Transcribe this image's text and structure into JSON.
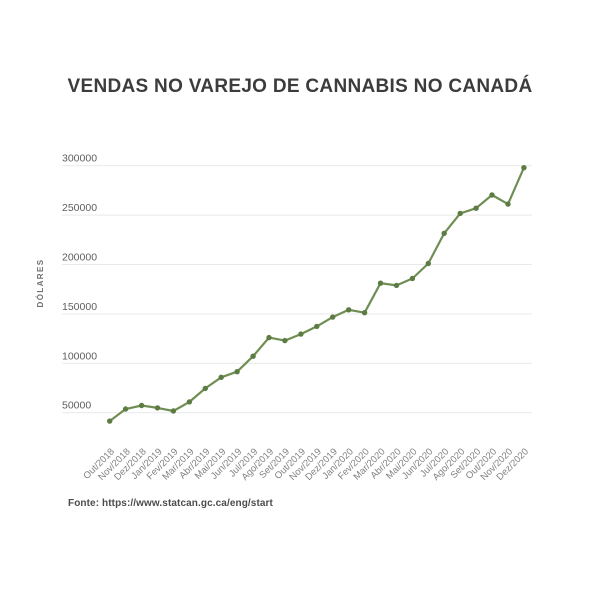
{
  "chart": {
    "title": "VENDAS NO VAREJO DE CANNABIS NO CANADÁ",
    "source_note": "Fonte: https://www.statcan.gc.ca/eng/start"
  },
  "chart_data": {
    "type": "line",
    "title": "VENDAS NO VAREJO DE CANNABIS NO CANADÁ",
    "xlabel": "",
    "ylabel": "DÓLARES",
    "categories": [
      "Out/2018",
      "Nov/2018",
      "Dez/2018",
      "Jan/2019",
      "Fev/2019",
      "Mar/2019",
      "Abr/2019",
      "Mai/2019",
      "Jun/2019",
      "Jul/2019",
      "Ago/2019",
      "Set/2019",
      "Out/2019",
      "Nov/2019",
      "Dez/2019",
      "Jan/2020",
      "Fev/2020",
      "Mar/2020",
      "Abr/2020",
      "Mai/2020",
      "Jun/2020",
      "Jul/2020",
      "Ago/2020",
      "Set/2020",
      "Out/2020",
      "Nov/2020",
      "Dez/2020"
    ],
    "values": [
      41500,
      53700,
      57300,
      54900,
      51700,
      60900,
      74600,
      85800,
      91500,
      107200,
      126000,
      123000,
      129600,
      137300,
      146800,
      154100,
      151200,
      181100,
      178800,
      185800,
      201000,
      231600,
      251700,
      257000,
      270300,
      261100,
      298000
    ],
    "yticks": [
      50000,
      100000,
      150000,
      200000,
      250000,
      300000
    ],
    "ylim": [
      30000,
      310000
    ],
    "grid": "horizontal-only",
    "legend": "none",
    "marker": "circle",
    "colors": {
      "line": "#6f8e53",
      "point": "#5d7c44",
      "gridline": "#e9e9e9",
      "y_tick_label": "#5e5e5e",
      "x_tick_label": "#828282",
      "axis_title": "#717171",
      "title": "#3c3c3c",
      "source": "#4c4c4c",
      "background": "#ffffff"
    },
    "source": "Fonte: https://www.statcan.gc.ca/eng/start"
  }
}
